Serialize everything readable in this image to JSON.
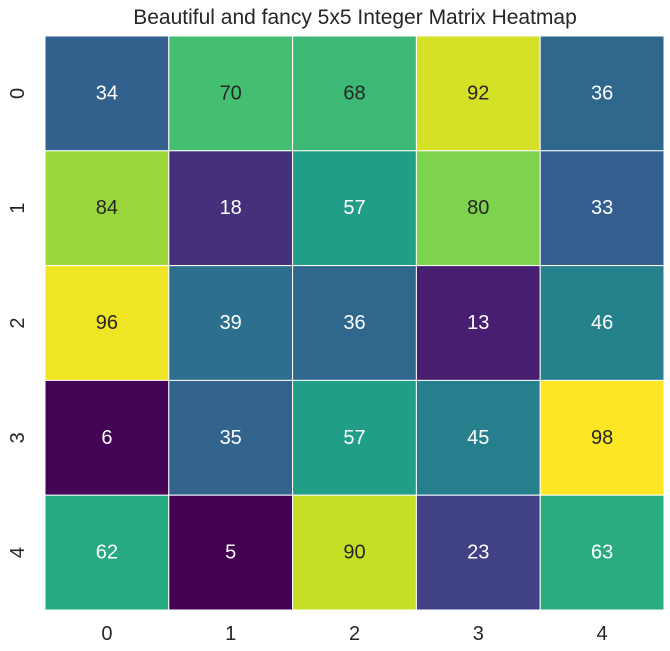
{
  "chart_data": {
    "type": "heatmap",
    "title": "Beautiful and fancy 5x5 Integer Matrix Heatmap",
    "xlabel": "",
    "ylabel": "",
    "x_categories": [
      "0",
      "1",
      "2",
      "3",
      "4"
    ],
    "y_categories": [
      "0",
      "1",
      "2",
      "3",
      "4"
    ],
    "values": [
      [
        34,
        70,
        68,
        92,
        36
      ],
      [
        84,
        18,
        57,
        80,
        33
      ],
      [
        96,
        39,
        36,
        13,
        46
      ],
      [
        6,
        35,
        57,
        45,
        98
      ],
      [
        62,
        5,
        90,
        23,
        63
      ]
    ],
    "colormap": "viridis",
    "value_range": [
      5,
      98
    ],
    "colorbar": false,
    "annotations": true,
    "grid_line_color": "#ffffff"
  }
}
